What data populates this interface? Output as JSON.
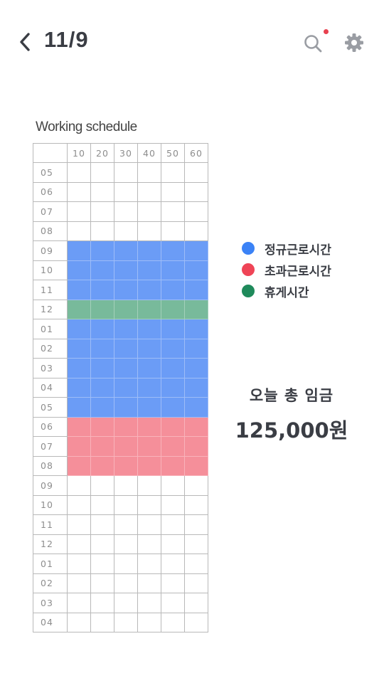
{
  "header": {
    "title": "11/9",
    "back_icon": "chevron-left-icon",
    "search_icon": "search-icon",
    "settings_icon": "gear-icon",
    "notification_color": "#e8414f"
  },
  "schedule": {
    "title": "Working schedule",
    "minute_columns": [
      "10",
      "20",
      "30",
      "40",
      "50",
      "60"
    ],
    "rows": [
      {
        "hour": "05",
        "type": "none"
      },
      {
        "hour": "06",
        "type": "none"
      },
      {
        "hour": "07",
        "type": "none"
      },
      {
        "hour": "08",
        "type": "none"
      },
      {
        "hour": "09",
        "type": "work"
      },
      {
        "hour": "10",
        "type": "work"
      },
      {
        "hour": "11",
        "type": "work"
      },
      {
        "hour": "12",
        "type": "rest"
      },
      {
        "hour": "01",
        "type": "work"
      },
      {
        "hour": "02",
        "type": "work"
      },
      {
        "hour": "03",
        "type": "work"
      },
      {
        "hour": "04",
        "type": "work"
      },
      {
        "hour": "05",
        "type": "work"
      },
      {
        "hour": "06",
        "type": "over"
      },
      {
        "hour": "07",
        "type": "over"
      },
      {
        "hour": "08",
        "type": "over"
      },
      {
        "hour": "09",
        "type": "none"
      },
      {
        "hour": "10",
        "type": "none"
      },
      {
        "hour": "11",
        "type": "none"
      },
      {
        "hour": "12",
        "type": "none"
      },
      {
        "hour": "01",
        "type": "none"
      },
      {
        "hour": "02",
        "type": "none"
      },
      {
        "hour": "03",
        "type": "none"
      },
      {
        "hour": "04",
        "type": "none"
      }
    ]
  },
  "legend": {
    "items": [
      {
        "label": "정규근로시간",
        "color": "#3b82f6"
      },
      {
        "label": "초과근로시간",
        "color": "#ef4456"
      },
      {
        "label": "휴게시간",
        "color": "#1f8a5b"
      }
    ]
  },
  "wage": {
    "label": "오늘 총 임금",
    "value": "125,000원"
  }
}
